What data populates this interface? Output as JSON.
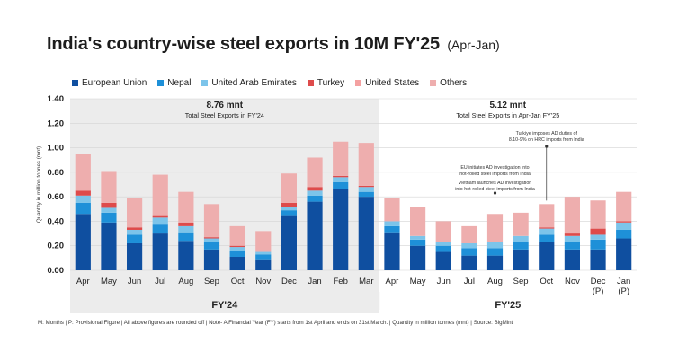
{
  "title": "India's country-wise steel exports in 10M FY'25",
  "subtitle": "(Apr-Jan)",
  "footnote": "M: Months | P: Provisional Figure | All above figures are rounded off | Note- A Financial Year (FY) starts from 1st April and ends on 31st March. | Quantity in million tonnes (mnt) | Source: BigMint",
  "colors": {
    "European Union": "#0f4fa0",
    "Nepal": "#1e90d8",
    "United Arab Emirates": "#7cc4ea",
    "Turkey": "#de4b4b",
    "United States": "#f4a1a1",
    "Others": "#eeaeae",
    "fy24_bg": "#ececec"
  },
  "chart_data": {
    "type": "bar",
    "stacked": true,
    "ylabel": "Quantity in million tonnes (mnt)",
    "ylim": [
      0,
      1.4
    ],
    "yticks": [
      "0.00",
      "0.20",
      "0.40",
      "0.60",
      "0.80",
      "1.00",
      "1.20",
      "1.40"
    ],
    "categories": [
      "Apr",
      "May",
      "Jun",
      "Jul",
      "Aug",
      "Sep",
      "Oct",
      "Nov",
      "Dec",
      "Jan",
      "Feb",
      "Mar",
      "Apr",
      "May",
      "Jun",
      "Jul",
      "Aug",
      "Sep",
      "Oct",
      "Nov",
      "Dec\n(P)",
      "Jan\n(P)"
    ],
    "series": [
      {
        "name": "European Union",
        "values": [
          0.46,
          0.39,
          0.22,
          0.3,
          0.24,
          0.17,
          0.11,
          0.09,
          0.45,
          0.56,
          0.66,
          0.6,
          0.31,
          0.2,
          0.15,
          0.12,
          0.12,
          0.17,
          0.23,
          0.17,
          0.17,
          0.26
        ]
      },
      {
        "name": "Nepal",
        "values": [
          0.09,
          0.08,
          0.07,
          0.08,
          0.07,
          0.06,
          0.05,
          0.04,
          0.04,
          0.05,
          0.06,
          0.04,
          0.05,
          0.05,
          0.05,
          0.06,
          0.06,
          0.06,
          0.06,
          0.06,
          0.08,
          0.07
        ]
      },
      {
        "name": "United Arab Emirates",
        "values": [
          0.06,
          0.04,
          0.04,
          0.05,
          0.05,
          0.03,
          0.03,
          0.02,
          0.03,
          0.04,
          0.04,
          0.04,
          0.04,
          0.03,
          0.03,
          0.04,
          0.05,
          0.05,
          0.05,
          0.05,
          0.04,
          0.06
        ]
      },
      {
        "name": "Turkey",
        "values": [
          0.04,
          0.04,
          0.02,
          0.02,
          0.03,
          0.01,
          0.01,
          0.0,
          0.03,
          0.03,
          0.01,
          0.01,
          0.0,
          0.0,
          0.0,
          0.0,
          0.0,
          0.0,
          0.01,
          0.02,
          0.05,
          0.01
        ]
      },
      {
        "name": "United States",
        "values": [
          0.0,
          0.0,
          0.0,
          0.0,
          0.0,
          0.0,
          0.0,
          0.0,
          0.0,
          0.0,
          0.0,
          0.0,
          0.0,
          0.0,
          0.0,
          0.0,
          0.0,
          0.0,
          0.0,
          0.0,
          0.0,
          0.0
        ]
      },
      {
        "name": "Others",
        "values": [
          0.3,
          0.26,
          0.24,
          0.33,
          0.25,
          0.27,
          0.16,
          0.17,
          0.24,
          0.24,
          0.28,
          0.35,
          0.19,
          0.24,
          0.17,
          0.14,
          0.23,
          0.19,
          0.19,
          0.3,
          0.23,
          0.24
        ]
      }
    ],
    "groups": [
      {
        "label": "FY'24",
        "start": 0,
        "end": 11,
        "total": "8.76 mnt",
        "total_label": "Total Steel Exports in FY'24"
      },
      {
        "label": "FY'25",
        "start": 12,
        "end": 21,
        "total": "5.12 mnt",
        "total_label": "Total Steel Exports in Apr-Jan FY'25"
      }
    ],
    "annotations": [
      {
        "index": 16,
        "text": [
          "EU initiates AD investigation into",
          "hot-rolled steel imports from India",
          "Vietnam launches AD investigation",
          "into hot-rolled steel imports from India"
        ]
      },
      {
        "index": 18,
        "text": [
          "Turkiye imposes AD duties of",
          "8.10-9% on HRC imports from India"
        ]
      }
    ],
    "grid": true,
    "legend_position": "top"
  }
}
